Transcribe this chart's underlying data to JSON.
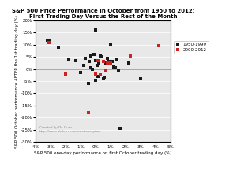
{
  "title": "S&P 500 Price Performance in October from 1950 to 2012:\nFirst Trading Day Versus the Rest of the Month",
  "xlabel": "S&P 500 one-day performance on first October trading day (%)",
  "ylabel": "S&P 500 October performance AFTER the 1st trading day (%)",
  "xlim": [
    -4,
    5
  ],
  "ylim": [
    -30,
    20
  ],
  "xticks": [
    -4,
    -3,
    -2,
    -1,
    0,
    1,
    2,
    3,
    4,
    5
  ],
  "yticks": [
    -30,
    -25,
    -20,
    -15,
    -10,
    -5,
    0,
    5,
    10,
    15,
    20
  ],
  "watermark_line1": "Created by Dr. Duru",
  "watermark_line2": "http://www.drduru.com/onetwentytwo",
  "legend_1950": "1950-1999",
  "legend_2000": "2000-2012",
  "color_1950": "#1a1a1a",
  "color_2000": "#cc2222",
  "background": "#e8e8e8",
  "scatter_1950_x": [
    -3.2,
    -3.1,
    -2.5,
    -1.8,
    -1.3,
    -1.0,
    -0.8,
    -0.7,
    -0.5,
    -0.4,
    -0.3,
    -0.3,
    -0.2,
    -0.1,
    0.0,
    0.0,
    0.0,
    0.1,
    0.1,
    0.15,
    0.2,
    0.3,
    0.4,
    0.5,
    0.6,
    0.7,
    0.8,
    0.9,
    1.0,
    1.1,
    1.2,
    1.3,
    1.4,
    1.5,
    1.65,
    2.2,
    3.0
  ],
  "scatter_1950_y": [
    12.0,
    11.5,
    9.0,
    4.0,
    3.5,
    -1.5,
    1.5,
    4.5,
    -6.0,
    3.0,
    5.5,
    0.5,
    0.0,
    6.0,
    16.0,
    -4.5,
    3.5,
    3.5,
    1.5,
    -3.0,
    2.5,
    5.5,
    5.0,
    -4.0,
    -3.5,
    2.5,
    4.5,
    3.0,
    10.0,
    3.0,
    1.0,
    0.5,
    4.0,
    -0.5,
    -24.5,
    2.5,
    -4.0
  ],
  "scatter_2000_x": [
    -3.1,
    -2.0,
    -0.5,
    0.0,
    0.15,
    0.3,
    0.5,
    0.7,
    0.8,
    1.0,
    2.3,
    4.2
  ],
  "scatter_2000_y": [
    11.0,
    -2.0,
    -18.0,
    -2.0,
    3.5,
    -2.5,
    3.0,
    -0.5,
    2.5,
    2.5,
    5.5,
    9.5
  ]
}
